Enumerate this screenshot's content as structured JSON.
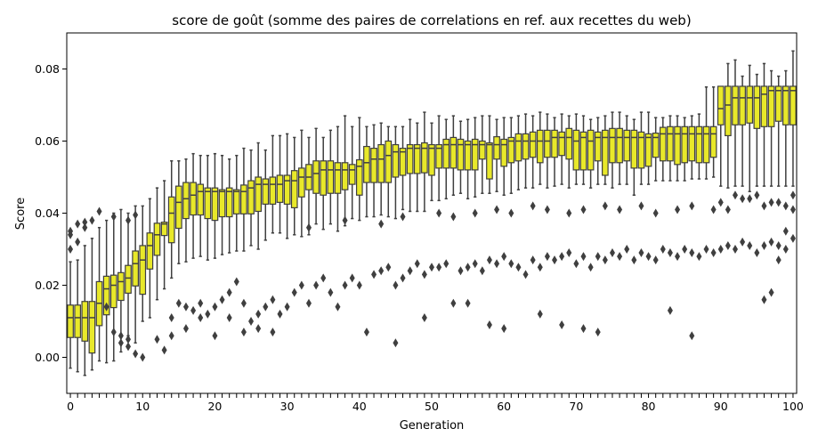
{
  "chart_data": {
    "type": "box",
    "title": "score de goût (somme des paires de correlations en ref. aux recettes du web)",
    "xlabel": "Generation",
    "ylabel": "Score",
    "xlim": [
      -0.5,
      100.5
    ],
    "ylim": [
      -0.01,
      0.09
    ],
    "x_ticks": [
      0,
      10,
      20,
      30,
      40,
      50,
      60,
      70,
      80,
      90,
      100
    ],
    "y_ticks": [
      0.0,
      0.02,
      0.04,
      0.06,
      0.08
    ],
    "y_tick_labels": [
      "0.00",
      "0.02",
      "0.04",
      "0.06",
      "0.08"
    ],
    "grid": false,
    "legend": "none",
    "box_color": "#e8e82a",
    "line_color": "#3f3f3f",
    "generations": [
      0,
      1,
      2,
      3,
      4,
      5,
      6,
      7,
      8,
      9,
      10,
      11,
      12,
      13,
      14,
      15,
      16,
      17,
      18,
      19,
      20,
      21,
      22,
      23,
      24,
      25,
      26,
      27,
      28,
      29,
      30,
      31,
      32,
      33,
      34,
      35,
      36,
      37,
      38,
      39,
      40,
      41,
      42,
      43,
      44,
      45,
      46,
      47,
      48,
      49,
      50,
      51,
      52,
      53,
      54,
      55,
      56,
      57,
      58,
      59,
      60,
      61,
      62,
      63,
      64,
      65,
      66,
      67,
      68,
      69,
      70,
      71,
      72,
      73,
      74,
      75,
      76,
      77,
      78,
      79,
      80,
      81,
      82,
      83,
      84,
      85,
      86,
      87,
      88,
      89,
      90,
      91,
      92,
      93,
      94,
      95,
      96,
      97,
      98,
      99,
      100
    ],
    "q1": [
      0.0055,
      0.0055,
      0.0045,
      0.0012,
      0.0088,
      0.0118,
      0.0138,
      0.0158,
      0.0178,
      0.0198,
      0.0175,
      0.0245,
      0.0283,
      0.0338,
      0.0318,
      0.0358,
      0.0385,
      0.0395,
      0.0395,
      0.0385,
      0.038,
      0.039,
      0.039,
      0.0398,
      0.0398,
      0.0398,
      0.0405,
      0.0425,
      0.0425,
      0.043,
      0.0425,
      0.0415,
      0.0445,
      0.0465,
      0.0455,
      0.045,
      0.0455,
      0.0455,
      0.0465,
      0.048,
      0.045,
      0.0485,
      0.0485,
      0.0485,
      0.0485,
      0.05,
      0.0505,
      0.051,
      0.051,
      0.0512,
      0.0505,
      0.0525,
      0.0525,
      0.0525,
      0.052,
      0.052,
      0.052,
      0.055,
      0.0495,
      0.055,
      0.053,
      0.054,
      0.0545,
      0.055,
      0.0555,
      0.054,
      0.0555,
      0.0555,
      0.056,
      0.055,
      0.052,
      0.052,
      0.052,
      0.0545,
      0.0505,
      0.054,
      0.054,
      0.0545,
      0.0525,
      0.0525,
      0.053,
      0.0555,
      0.0545,
      0.0545,
      0.0535,
      0.054,
      0.0545,
      0.054,
      0.054,
      0.0555,
      0.0645,
      0.0615,
      0.0645,
      0.0645,
      0.065,
      0.0635,
      0.064,
      0.064,
      0.0655,
      0.0645,
      0.0645
    ],
    "median": [
      0.011,
      0.011,
      0.011,
      0.011,
      0.015,
      0.019,
      0.02,
      0.021,
      0.022,
      0.026,
      0.027,
      0.031,
      0.034,
      0.037,
      0.04,
      0.043,
      0.044,
      0.045,
      0.046,
      0.046,
      0.046,
      0.046,
      0.046,
      0.046,
      0.046,
      0.047,
      0.048,
      0.048,
      0.048,
      0.048,
      0.049,
      0.049,
      0.05,
      0.05,
      0.051,
      0.052,
      0.052,
      0.052,
      0.052,
      0.052,
      0.053,
      0.054,
      0.055,
      0.055,
      0.056,
      0.057,
      0.057,
      0.058,
      0.058,
      0.058,
      0.058,
      0.058,
      0.059,
      0.059,
      0.059,
      0.059,
      0.059,
      0.059,
      0.059,
      0.059,
      0.059,
      0.06,
      0.06,
      0.06,
      0.06,
      0.06,
      0.06,
      0.061,
      0.061,
      0.061,
      0.06,
      0.061,
      0.06,
      0.061,
      0.061,
      0.061,
      0.061,
      0.061,
      0.061,
      0.061,
      0.061,
      0.061,
      0.062,
      0.062,
      0.062,
      0.062,
      0.062,
      0.062,
      0.062,
      0.062,
      0.069,
      0.07,
      0.072,
      0.072,
      0.072,
      0.072,
      0.073,
      0.074,
      0.074,
      0.074,
      0.074
    ],
    "q3": [
      0.0145,
      0.0145,
      0.0155,
      0.0155,
      0.021,
      0.0225,
      0.0228,
      0.0235,
      0.0255,
      0.0295,
      0.031,
      0.0345,
      0.0372,
      0.0375,
      0.0445,
      0.0475,
      0.0485,
      0.0485,
      0.048,
      0.047,
      0.047,
      0.0465,
      0.047,
      0.0465,
      0.0478,
      0.049,
      0.05,
      0.0495,
      0.05,
      0.0505,
      0.0505,
      0.0518,
      0.0525,
      0.0535,
      0.0545,
      0.0545,
      0.0545,
      0.054,
      0.054,
      0.0535,
      0.0548,
      0.0585,
      0.058,
      0.059,
      0.06,
      0.059,
      0.058,
      0.059,
      0.059,
      0.0595,
      0.059,
      0.059,
      0.0605,
      0.061,
      0.0605,
      0.06,
      0.0605,
      0.06,
      0.0595,
      0.0612,
      0.0605,
      0.061,
      0.062,
      0.062,
      0.0625,
      0.063,
      0.063,
      0.063,
      0.0625,
      0.0635,
      0.063,
      0.0625,
      0.063,
      0.0625,
      0.063,
      0.0635,
      0.0635,
      0.063,
      0.063,
      0.0625,
      0.062,
      0.0622,
      0.0638,
      0.064,
      0.064,
      0.064,
      0.064,
      0.064,
      0.064,
      0.064,
      0.0752,
      0.0752,
      0.0752,
      0.0752,
      0.0752,
      0.0752,
      0.0752,
      0.0752,
      0.0752,
      0.0752,
      0.0752
    ],
    "whisker_low": [
      -0.003,
      -0.004,
      -0.005,
      -0.0035,
      -0.001,
      -0.0015,
      -0.001,
      0.0015,
      0.006,
      0.004,
      0.01,
      0.011,
      0.016,
      0.019,
      0.022,
      0.026,
      0.0265,
      0.0275,
      0.028,
      0.027,
      0.0275,
      0.0285,
      0.029,
      0.0295,
      0.0295,
      0.031,
      0.03,
      0.0325,
      0.0345,
      0.0345,
      0.033,
      0.034,
      0.0335,
      0.034,
      0.037,
      0.0355,
      0.037,
      0.035,
      0.0365,
      0.0385,
      0.038,
      0.039,
      0.039,
      0.0395,
      0.039,
      0.0385,
      0.041,
      0.0405,
      0.0405,
      0.0405,
      0.0435,
      0.0435,
      0.044,
      0.045,
      0.0455,
      0.044,
      0.0445,
      0.0455,
      0.0455,
      0.046,
      0.045,
      0.0455,
      0.0465,
      0.047,
      0.047,
      0.048,
      0.047,
      0.0475,
      0.048,
      0.047,
      0.048,
      0.048,
      0.047,
      0.048,
      0.048,
      0.047,
      0.048,
      0.048,
      0.045,
      0.048,
      0.048,
      0.049,
      0.049,
      0.049,
      0.049,
      0.049,
      0.0495,
      0.0495,
      0.0495,
      0.05,
      0.0475,
      0.047,
      0.0475,
      0.0475,
      0.046,
      0.0475,
      0.0475,
      0.0475,
      0.0475,
      0.0475,
      0.0475
    ],
    "whisker_high": [
      0.0265,
      0.027,
      0.031,
      0.033,
      0.036,
      0.038,
      0.04,
      0.041,
      0.04,
      0.042,
      0.042,
      0.044,
      0.047,
      0.049,
      0.0545,
      0.0545,
      0.055,
      0.0565,
      0.056,
      0.056,
      0.0565,
      0.056,
      0.055,
      0.056,
      0.058,
      0.0575,
      0.0595,
      0.0575,
      0.0615,
      0.0615,
      0.062,
      0.061,
      0.063,
      0.061,
      0.0635,
      0.061,
      0.063,
      0.064,
      0.067,
      0.064,
      0.0665,
      0.064,
      0.0645,
      0.065,
      0.064,
      0.064,
      0.064,
      0.066,
      0.065,
      0.068,
      0.065,
      0.067,
      0.066,
      0.067,
      0.0655,
      0.066,
      0.0665,
      0.067,
      0.067,
      0.066,
      0.0665,
      0.0665,
      0.067,
      0.0675,
      0.067,
      0.068,
      0.0675,
      0.0665,
      0.0675,
      0.067,
      0.0675,
      0.067,
      0.066,
      0.0665,
      0.067,
      0.068,
      0.068,
      0.067,
      0.066,
      0.068,
      0.068,
      0.0665,
      0.0665,
      0.067,
      0.067,
      0.0665,
      0.067,
      0.0675,
      0.075,
      0.075,
      0.075,
      0.0815,
      0.0825,
      0.078,
      0.081,
      0.0785,
      0.0815,
      0.0795,
      0.078,
      0.0795,
      0.085
    ],
    "outliers": [
      [
        0,
        0.035
      ],
      [
        0,
        0.034
      ],
      [
        0,
        0.03
      ],
      [
        1,
        0.037
      ],
      [
        1,
        0.032
      ],
      [
        2,
        0.0375
      ],
      [
        2,
        0.036
      ],
      [
        3,
        0.038
      ],
      [
        4,
        0.0405
      ],
      [
        6,
        0.039
      ],
      [
        8,
        0.038
      ],
      [
        9,
        0.0395
      ],
      [
        5,
        0.014
      ],
      [
        6,
        0.007
      ],
      [
        7,
        0.006
      ],
      [
        7,
        0.004
      ],
      [
        8,
        0.005
      ],
      [
        8,
        0.003
      ],
      [
        9,
        0.001
      ],
      [
        10,
        0.0
      ],
      [
        12,
        0.005
      ],
      [
        13,
        0.002
      ],
      [
        14,
        0.011
      ],
      [
        15,
        0.015
      ],
      [
        16,
        0.014
      ],
      [
        17,
        0.013
      ],
      [
        18,
        0.015
      ],
      [
        19,
        0.012
      ],
      [
        20,
        0.014
      ],
      [
        21,
        0.016
      ],
      [
        22,
        0.018
      ],
      [
        23,
        0.021
      ],
      [
        24,
        0.015
      ],
      [
        25,
        0.01
      ],
      [
        26,
        0.012
      ],
      [
        27,
        0.014
      ],
      [
        28,
        0.016
      ],
      [
        29,
        0.012
      ],
      [
        30,
        0.014
      ],
      [
        14,
        0.006
      ],
      [
        16,
        0.008
      ],
      [
        18,
        0.011
      ],
      [
        20,
        0.006
      ],
      [
        22,
        0.011
      ],
      [
        24,
        0.007
      ],
      [
        26,
        0.008
      ],
      [
        28,
        0.007
      ],
      [
        31,
        0.018
      ],
      [
        32,
        0.02
      ],
      [
        33,
        0.015
      ],
      [
        34,
        0.02
      ],
      [
        35,
        0.022
      ],
      [
        36,
        0.018
      ],
      [
        37,
        0.014
      ],
      [
        38,
        0.02
      ],
      [
        39,
        0.022
      ],
      [
        40,
        0.02
      ],
      [
        41,
        0.007
      ],
      [
        42,
        0.023
      ],
      [
        43,
        0.024
      ],
      [
        44,
        0.025
      ],
      [
        45,
        0.02
      ],
      [
        46,
        0.022
      ],
      [
        47,
        0.024
      ],
      [
        48,
        0.026
      ],
      [
        49,
        0.023
      ],
      [
        50,
        0.025
      ],
      [
        51,
        0.025
      ],
      [
        52,
        0.026
      ],
      [
        53,
        0.015
      ],
      [
        54,
        0.024
      ],
      [
        55,
        0.025
      ],
      [
        56,
        0.026
      ],
      [
        57,
        0.024
      ],
      [
        58,
        0.027
      ],
      [
        59,
        0.026
      ],
      [
        60,
        0.028
      ],
      [
        61,
        0.026
      ],
      [
        62,
        0.025
      ],
      [
        63,
        0.023
      ],
      [
        64,
        0.027
      ],
      [
        65,
        0.025
      ],
      [
        66,
        0.028
      ],
      [
        67,
        0.027
      ],
      [
        68,
        0.028
      ],
      [
        69,
        0.029
      ],
      [
        70,
        0.026
      ],
      [
        71,
        0.028
      ],
      [
        72,
        0.025
      ],
      [
        73,
        0.028
      ],
      [
        74,
        0.027
      ],
      [
        75,
        0.029
      ],
      [
        76,
        0.028
      ],
      [
        77,
        0.03
      ],
      [
        78,
        0.027
      ],
      [
        79,
        0.029
      ],
      [
        80,
        0.028
      ],
      [
        81,
        0.027
      ],
      [
        82,
        0.03
      ],
      [
        83,
        0.029
      ],
      [
        84,
        0.028
      ],
      [
        85,
        0.03
      ],
      [
        86,
        0.029
      ],
      [
        87,
        0.028
      ],
      [
        88,
        0.03
      ],
      [
        89,
        0.029
      ],
      [
        90,
        0.03
      ],
      [
        91,
        0.031
      ],
      [
        92,
        0.03
      ],
      [
        93,
        0.032
      ],
      [
        94,
        0.031
      ],
      [
        95,
        0.029
      ],
      [
        96,
        0.031
      ],
      [
        97,
        0.032
      ],
      [
        98,
        0.031
      ],
      [
        99,
        0.03
      ],
      [
        100,
        0.033
      ],
      [
        33,
        0.036
      ],
      [
        38,
        0.038
      ],
      [
        43,
        0.037
      ],
      [
        46,
        0.039
      ],
      [
        51,
        0.04
      ],
      [
        53,
        0.039
      ],
      [
        56,
        0.04
      ],
      [
        59,
        0.041
      ],
      [
        61,
        0.04
      ],
      [
        64,
        0.042
      ],
      [
        66,
        0.041
      ],
      [
        69,
        0.04
      ],
      [
        71,
        0.041
      ],
      [
        74,
        0.042
      ],
      [
        76,
        0.041
      ],
      [
        79,
        0.042
      ],
      [
        81,
        0.04
      ],
      [
        84,
        0.041
      ],
      [
        86,
        0.042
      ],
      [
        89,
        0.041
      ],
      [
        90,
        0.043
      ],
      [
        91,
        0.041
      ],
      [
        92,
        0.045
      ],
      [
        93,
        0.044
      ],
      [
        94,
        0.044
      ],
      [
        95,
        0.045
      ],
      [
        96,
        0.042
      ],
      [
        97,
        0.043
      ],
      [
        98,
        0.043
      ],
      [
        99,
        0.042
      ],
      [
        100,
        0.045
      ],
      [
        100,
        0.041
      ],
      [
        45,
        0.004
      ],
      [
        49,
        0.011
      ],
      [
        55,
        0.015
      ],
      [
        58,
        0.009
      ],
      [
        60,
        0.008
      ],
      [
        65,
        0.012
      ],
      [
        68,
        0.009
      ],
      [
        71,
        0.008
      ],
      [
        73,
        0.007
      ],
      [
        83,
        0.013
      ],
      [
        86,
        0.006
      ],
      [
        96,
        0.016
      ],
      [
        97,
        0.018
      ],
      [
        99,
        0.035
      ],
      [
        98,
        0.027
      ]
    ]
  }
}
